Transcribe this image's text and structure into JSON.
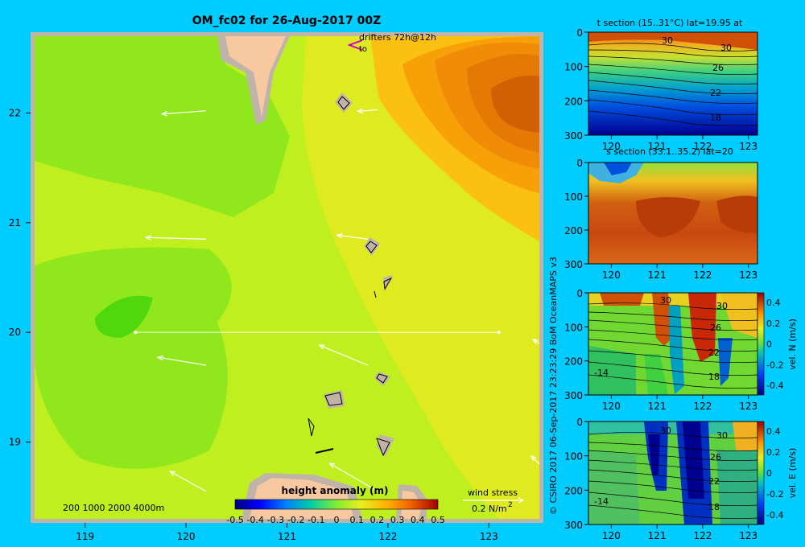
{
  "title": "OM_fc02 for 26-Aug-2017 00Z",
  "credit": "© CSIRO 2017   06-Sep-2017 23:23:29 BoM OceanMAPS v3",
  "colors": {
    "background": "#00ccff",
    "land": "#f8c8a0",
    "shelf": "#c0b4a8",
    "vector": "#ffffff",
    "drifter": "#cc00cc"
  },
  "map": {
    "lon_ticks": [
      "119",
      "120",
      "121",
      "122",
      "123"
    ],
    "lat_ticks": [
      "22",
      "21",
      "20",
      "19"
    ],
    "lon_range": [
      118.5,
      123.5
    ],
    "lat_range": [
      18.3,
      22.7
    ],
    "drifter_label": "drifters 72h@12h",
    "drifter_sub": "to",
    "depth_legend": "200  1000  2000  4000m",
    "wind_label": "wind stress",
    "wind_scale": "0.2 N/m",
    "wind_scale_sup": "2",
    "section_line_lat": 20,
    "section_line_lon": [
      119.5,
      123.1
    ]
  },
  "colorbar": {
    "title": "height anomaly (m)",
    "ticks": [
      "-0.5",
      "-0.4",
      "-0.3",
      "-0.2",
      "-0.1",
      "0",
      "0.1",
      "0.2",
      "0.3",
      "0.4",
      "0.5"
    ]
  },
  "panels": {
    "t": {
      "title": "t section (15..31°C) lat=19.95 at",
      "contours": [
        {
          "v": "30"
        },
        {
          "v": "30"
        },
        {
          "v": "26"
        },
        {
          "v": "22"
        },
        {
          "v": "18"
        }
      ]
    },
    "s": {
      "title": "s section (33.1..35.2) lat=20"
    },
    "n": {
      "unit": "vel. N (m/s)",
      "contours": [
        {
          "v": "30"
        },
        {
          "v": "30"
        },
        {
          "v": "26"
        },
        {
          "v": "22"
        },
        {
          "v": "18"
        },
        {
          "v": "-14"
        }
      ]
    },
    "e": {
      "unit": "vel. E (m/s)",
      "contours": [
        {
          "v": "30"
        },
        {
          "v": "30"
        },
        {
          "v": "26"
        },
        {
          "v": "22"
        },
        {
          "v": "18"
        },
        {
          "v": "-14"
        }
      ]
    },
    "x_ticks": [
      "120",
      "121",
      "122",
      "123"
    ],
    "depth_ticks": [
      "0",
      "100",
      "200",
      "300"
    ],
    "vel_ticks": [
      "0.4",
      "0.2",
      "0",
      "-0.2",
      "-0.4"
    ]
  },
  "chart_data": [
    {
      "type": "heatmap",
      "title": "OM_fc02 for 26-Aug-2017 00Z",
      "xlabel": "",
      "ylabel": "",
      "x_range": [
        118.5,
        123.5
      ],
      "y_range": [
        18.3,
        22.7
      ],
      "colorbar_title": "height anomaly (m)",
      "colorbar_range": [
        -0.5,
        0.5
      ],
      "wind_vectors": [
        {
          "lon": 120.2,
          "lat": 22.02,
          "u": -0.55,
          "v": -0.04
        },
        {
          "lon": 121.9,
          "lat": 22.03,
          "u": -0.25,
          "v": -0.02
        },
        {
          "lon": 120.2,
          "lat": 20.85,
          "u": -0.75,
          "v": 0.02
        },
        {
          "lon": 121.8,
          "lat": 20.85,
          "u": -0.38,
          "v": 0.05
        },
        {
          "lon": 121.8,
          "lat": 19.7,
          "u": -0.6,
          "v": 0.25
        },
        {
          "lon": 120.2,
          "lat": 19.7,
          "u": -0.6,
          "v": 0.1
        },
        {
          "lon": 121.9,
          "lat": 18.55,
          "u": -0.6,
          "v": 0.35
        },
        {
          "lon": 120.2,
          "lat": 18.55,
          "u": -0.45,
          "v": 0.25
        },
        {
          "lon": 123.5,
          "lat": 18.8,
          "u": -0.1,
          "v": 0.1
        },
        {
          "lon": 123.5,
          "lat": 19.9,
          "u": -0.08,
          "v": 0.05
        }
      ]
    },
    {
      "type": "heatmap",
      "title": "t section (15..31°C) lat=19.95 at",
      "x_range": [
        119.5,
        123.2
      ],
      "y_range": [
        300,
        0
      ]
    },
    {
      "type": "heatmap",
      "title": "s section (33.1..35.2) lat=20",
      "x_range": [
        119.5,
        123.2
      ],
      "y_range": [
        300,
        0
      ]
    },
    {
      "type": "heatmap",
      "title": "vel. N (m/s)",
      "x_range": [
        119.5,
        123.2
      ],
      "y_range": [
        300,
        0
      ],
      "colorbar_range": [
        -0.4,
        0.4
      ]
    },
    {
      "type": "heatmap",
      "title": "vel. E (m/s)",
      "x_range": [
        119.5,
        123.2
      ],
      "y_range": [
        300,
        0
      ],
      "colorbar_range": [
        -0.4,
        0.4
      ]
    }
  ]
}
